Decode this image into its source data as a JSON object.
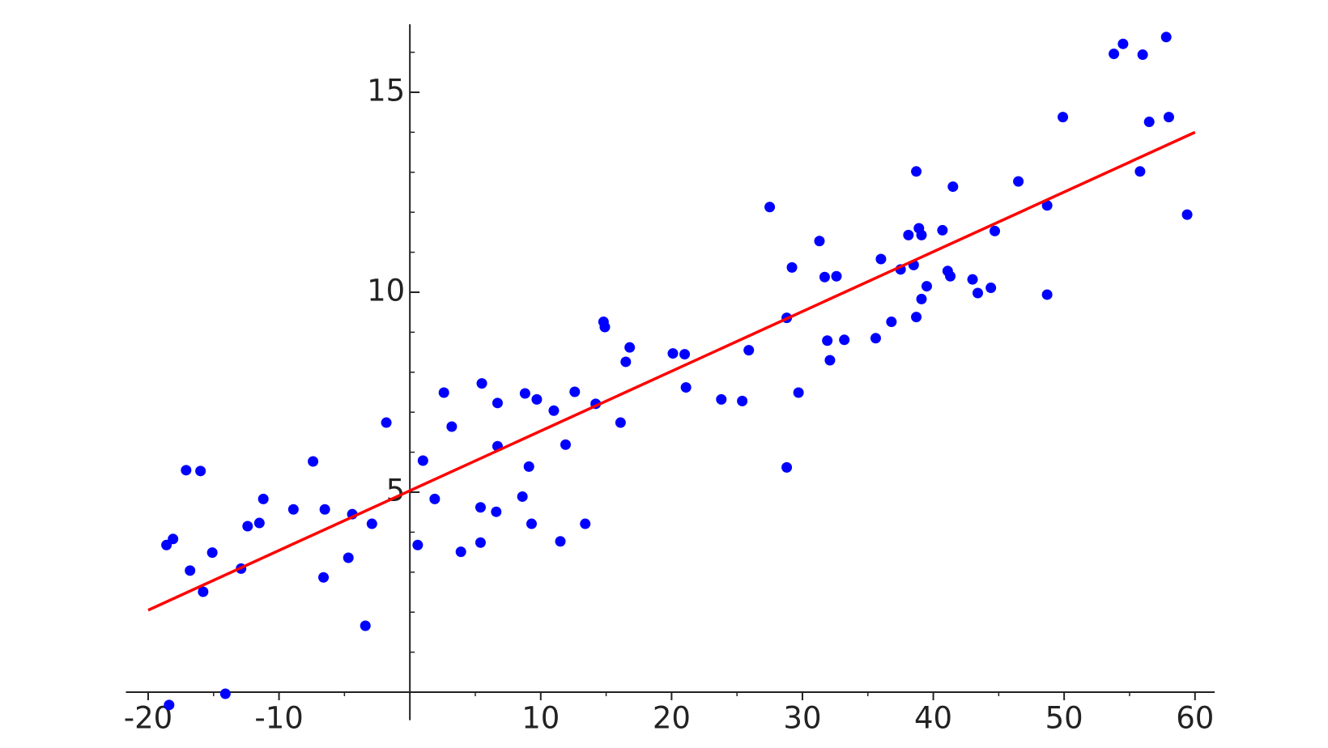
{
  "chart_data": {
    "type": "scatter",
    "x": [
      -18.4,
      -18.6,
      -18.1,
      -17.1,
      -16.0,
      -16.8,
      -15.8,
      -15.1,
      -14.1,
      -12.9,
      -12.4,
      -11.5,
      -11.2,
      -8.9,
      -7.4,
      -6.6,
      -6.5,
      -4.7,
      -4.4,
      -3.4,
      -2.9,
      -1.8,
      0.6,
      1.0,
      1.9,
      2.6,
      3.2,
      3.9,
      5.4,
      5.5,
      5.4,
      6.6,
      6.7,
      6.7,
      8.6,
      8.8,
      9.1,
      9.3,
      9.7,
      11.0,
      11.5,
      11.9,
      12.6,
      13.4,
      14.2,
      14.8,
      14.9,
      16.1,
      16.5,
      16.8,
      20.1,
      21.0,
      21.1,
      23.8,
      25.4,
      25.9,
      27.5,
      28.8,
      28.8,
      29.2,
      29.7,
      31.3,
      31.7,
      31.9,
      32.1,
      32.6,
      33.2,
      35.6,
      36.0,
      36.8,
      37.5,
      38.1,
      38.5,
      38.7,
      38.7,
      38.9,
      39.1,
      39.1,
      39.5,
      40.7,
      41.1,
      41.3,
      41.5,
      43.0,
      43.4,
      44.4,
      44.7,
      46.5,
      48.7,
      48.7,
      49.9,
      53.8,
      54.5,
      56.0,
      55.8,
      56.5,
      57.8,
      58.0,
      59.4
    ],
    "values": [
      -0.32,
      3.68,
      3.83,
      5.55,
      5.53,
      3.04,
      2.51,
      3.49,
      -0.04,
      3.09,
      4.15,
      4.23,
      4.83,
      4.57,
      5.77,
      2.87,
      4.57,
      3.36,
      4.45,
      1.66,
      4.21,
      6.74,
      3.68,
      5.79,
      4.83,
      7.49,
      6.64,
      3.51,
      3.74,
      7.72,
      4.62,
      4.51,
      7.23,
      6.15,
      4.89,
      7.47,
      5.64,
      4.21,
      7.32,
      7.04,
      3.77,
      6.19,
      7.51,
      4.21,
      7.21,
      9.26,
      9.13,
      6.74,
      8.26,
      8.62,
      8.47,
      8.45,
      7.62,
      7.32,
      7.28,
      8.55,
      12.13,
      5.62,
      9.36,
      10.62,
      7.49,
      11.28,
      10.38,
      8.79,
      8.3,
      10.4,
      8.81,
      8.85,
      10.83,
      9.26,
      10.57,
      11.43,
      10.68,
      13.02,
      9.38,
      11.6,
      11.43,
      9.83,
      10.15,
      11.55,
      10.53,
      10.4,
      12.64,
      10.32,
      9.98,
      10.11,
      11.53,
      12.77,
      9.94,
      12.17,
      14.38,
      15.96,
      16.21,
      15.94,
      13.02,
      14.26,
      16.38,
      14.38,
      11.94
    ],
    "color": "#0000ff",
    "fit_line": {
      "x": [
        -20,
        60
      ],
      "values": [
        2.05,
        14.0
      ],
      "color": "#ff0000"
    },
    "xlim": [
      -21.7,
      61.5
    ],
    "ylim": [
      -0.7,
      16.7
    ],
    "xticks": [
      -20,
      -10,
      10,
      20,
      30,
      40,
      50,
      60
    ],
    "yticks": [
      5,
      10,
      15
    ],
    "xminor": [
      -15,
      -5,
      5,
      15,
      25,
      35,
      45,
      55
    ],
    "yminor": [
      1,
      2,
      3,
      4,
      6,
      7,
      8,
      9,
      11,
      12,
      13,
      14,
      16
    ]
  }
}
